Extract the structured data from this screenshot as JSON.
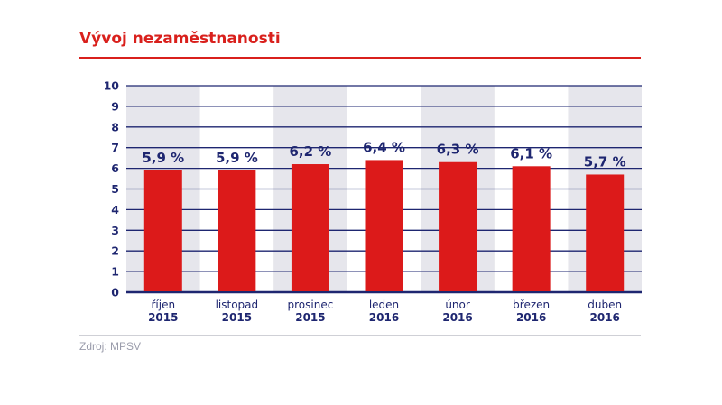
{
  "title": "Vývoj nezaměstnanosti",
  "source": "Zdroj: MPSV",
  "chart_data": {
    "type": "bar",
    "categories": [
      [
        "říjen",
        "2015"
      ],
      [
        "listopad",
        "2015"
      ],
      [
        "prosinec",
        "2015"
      ],
      [
        "leden",
        "2016"
      ],
      [
        "únor",
        "2016"
      ],
      [
        "březen",
        "2016"
      ],
      [
        "duben",
        "2016"
      ]
    ],
    "values": [
      5.9,
      5.9,
      6.2,
      6.4,
      6.3,
      6.1,
      5.7
    ],
    "data_labels": [
      "5,9 %",
      "5,9 %",
      "6,2 %",
      "6,4 %",
      "6,3 %",
      "6,1 %",
      "5,7 %"
    ],
    "ylim": [
      0,
      10
    ],
    "yticks": [
      0,
      1,
      2,
      3,
      4,
      5,
      6,
      7,
      8,
      9,
      10
    ],
    "grid": true,
    "colors": {
      "bar": "#dc1a1a",
      "grid": "#1e2670",
      "text": "#1e2670",
      "band": "#e6e6ec"
    }
  }
}
